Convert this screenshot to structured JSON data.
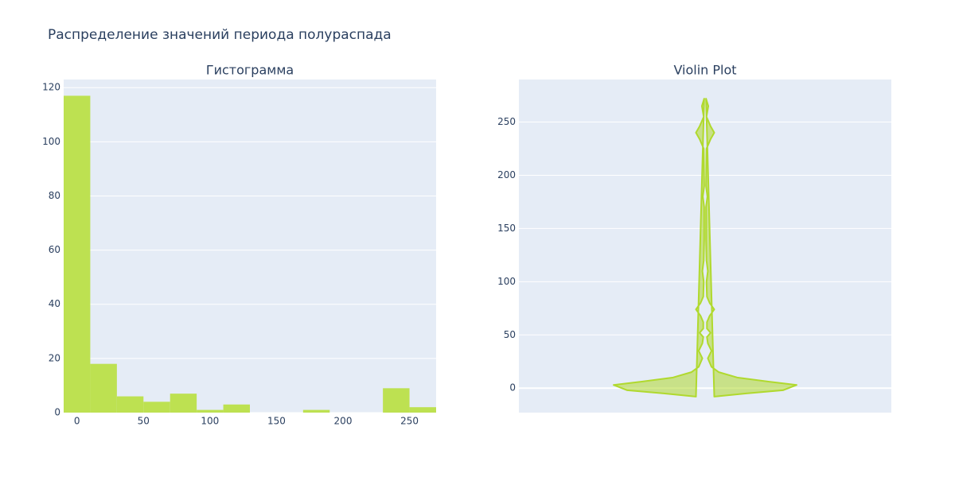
{
  "title": "Распределение значений периода полураспада",
  "chart_data": [
    {
      "type": "histogram",
      "title": "Гистограмма",
      "bins": [
        -10,
        10,
        30,
        50,
        70,
        90,
        110,
        130,
        150,
        170,
        190,
        210,
        230,
        250,
        270
      ],
      "counts": [
        117,
        18,
        6,
        4,
        7,
        1,
        3,
        0,
        0,
        1,
        0,
        0,
        9,
        2
      ],
      "color": "#bde151",
      "xlim": [
        -10,
        270
      ],
      "xticks": [
        0,
        50,
        100,
        150,
        200,
        250
      ],
      "ylim": [
        0,
        123
      ],
      "yticks": [
        0,
        20,
        40,
        60,
        80,
        100,
        120
      ],
      "grid": true
    },
    {
      "type": "violin",
      "title": "Violin Plot",
      "y": [
        -8,
        -5,
        -2,
        3,
        6,
        10,
        15,
        20,
        28,
        35,
        42,
        48,
        52,
        56,
        62,
        68,
        74,
        80,
        86,
        100,
        110,
        120,
        140,
        170,
        180,
        190,
        225,
        234,
        240,
        246,
        255,
        265,
        272
      ],
      "width": [
        0.1,
        0.45,
        0.85,
        1.0,
        0.7,
        0.35,
        0.15,
        0.07,
        0.03,
        0.07,
        0.03,
        0.02,
        0.06,
        0.02,
        0.02,
        0.05,
        0.1,
        0.05,
        0.02,
        0.015,
        0.03,
        0.015,
        0.01,
        0.01,
        0.025,
        0.01,
        0.015,
        0.06,
        0.1,
        0.06,
        0.015,
        0.035,
        0.01
      ],
      "color": "#b0d92e",
      "ylim": [
        -23,
        290
      ],
      "yticks": [
        0,
        50,
        100,
        150,
        200,
        250
      ],
      "grid": true
    }
  ]
}
